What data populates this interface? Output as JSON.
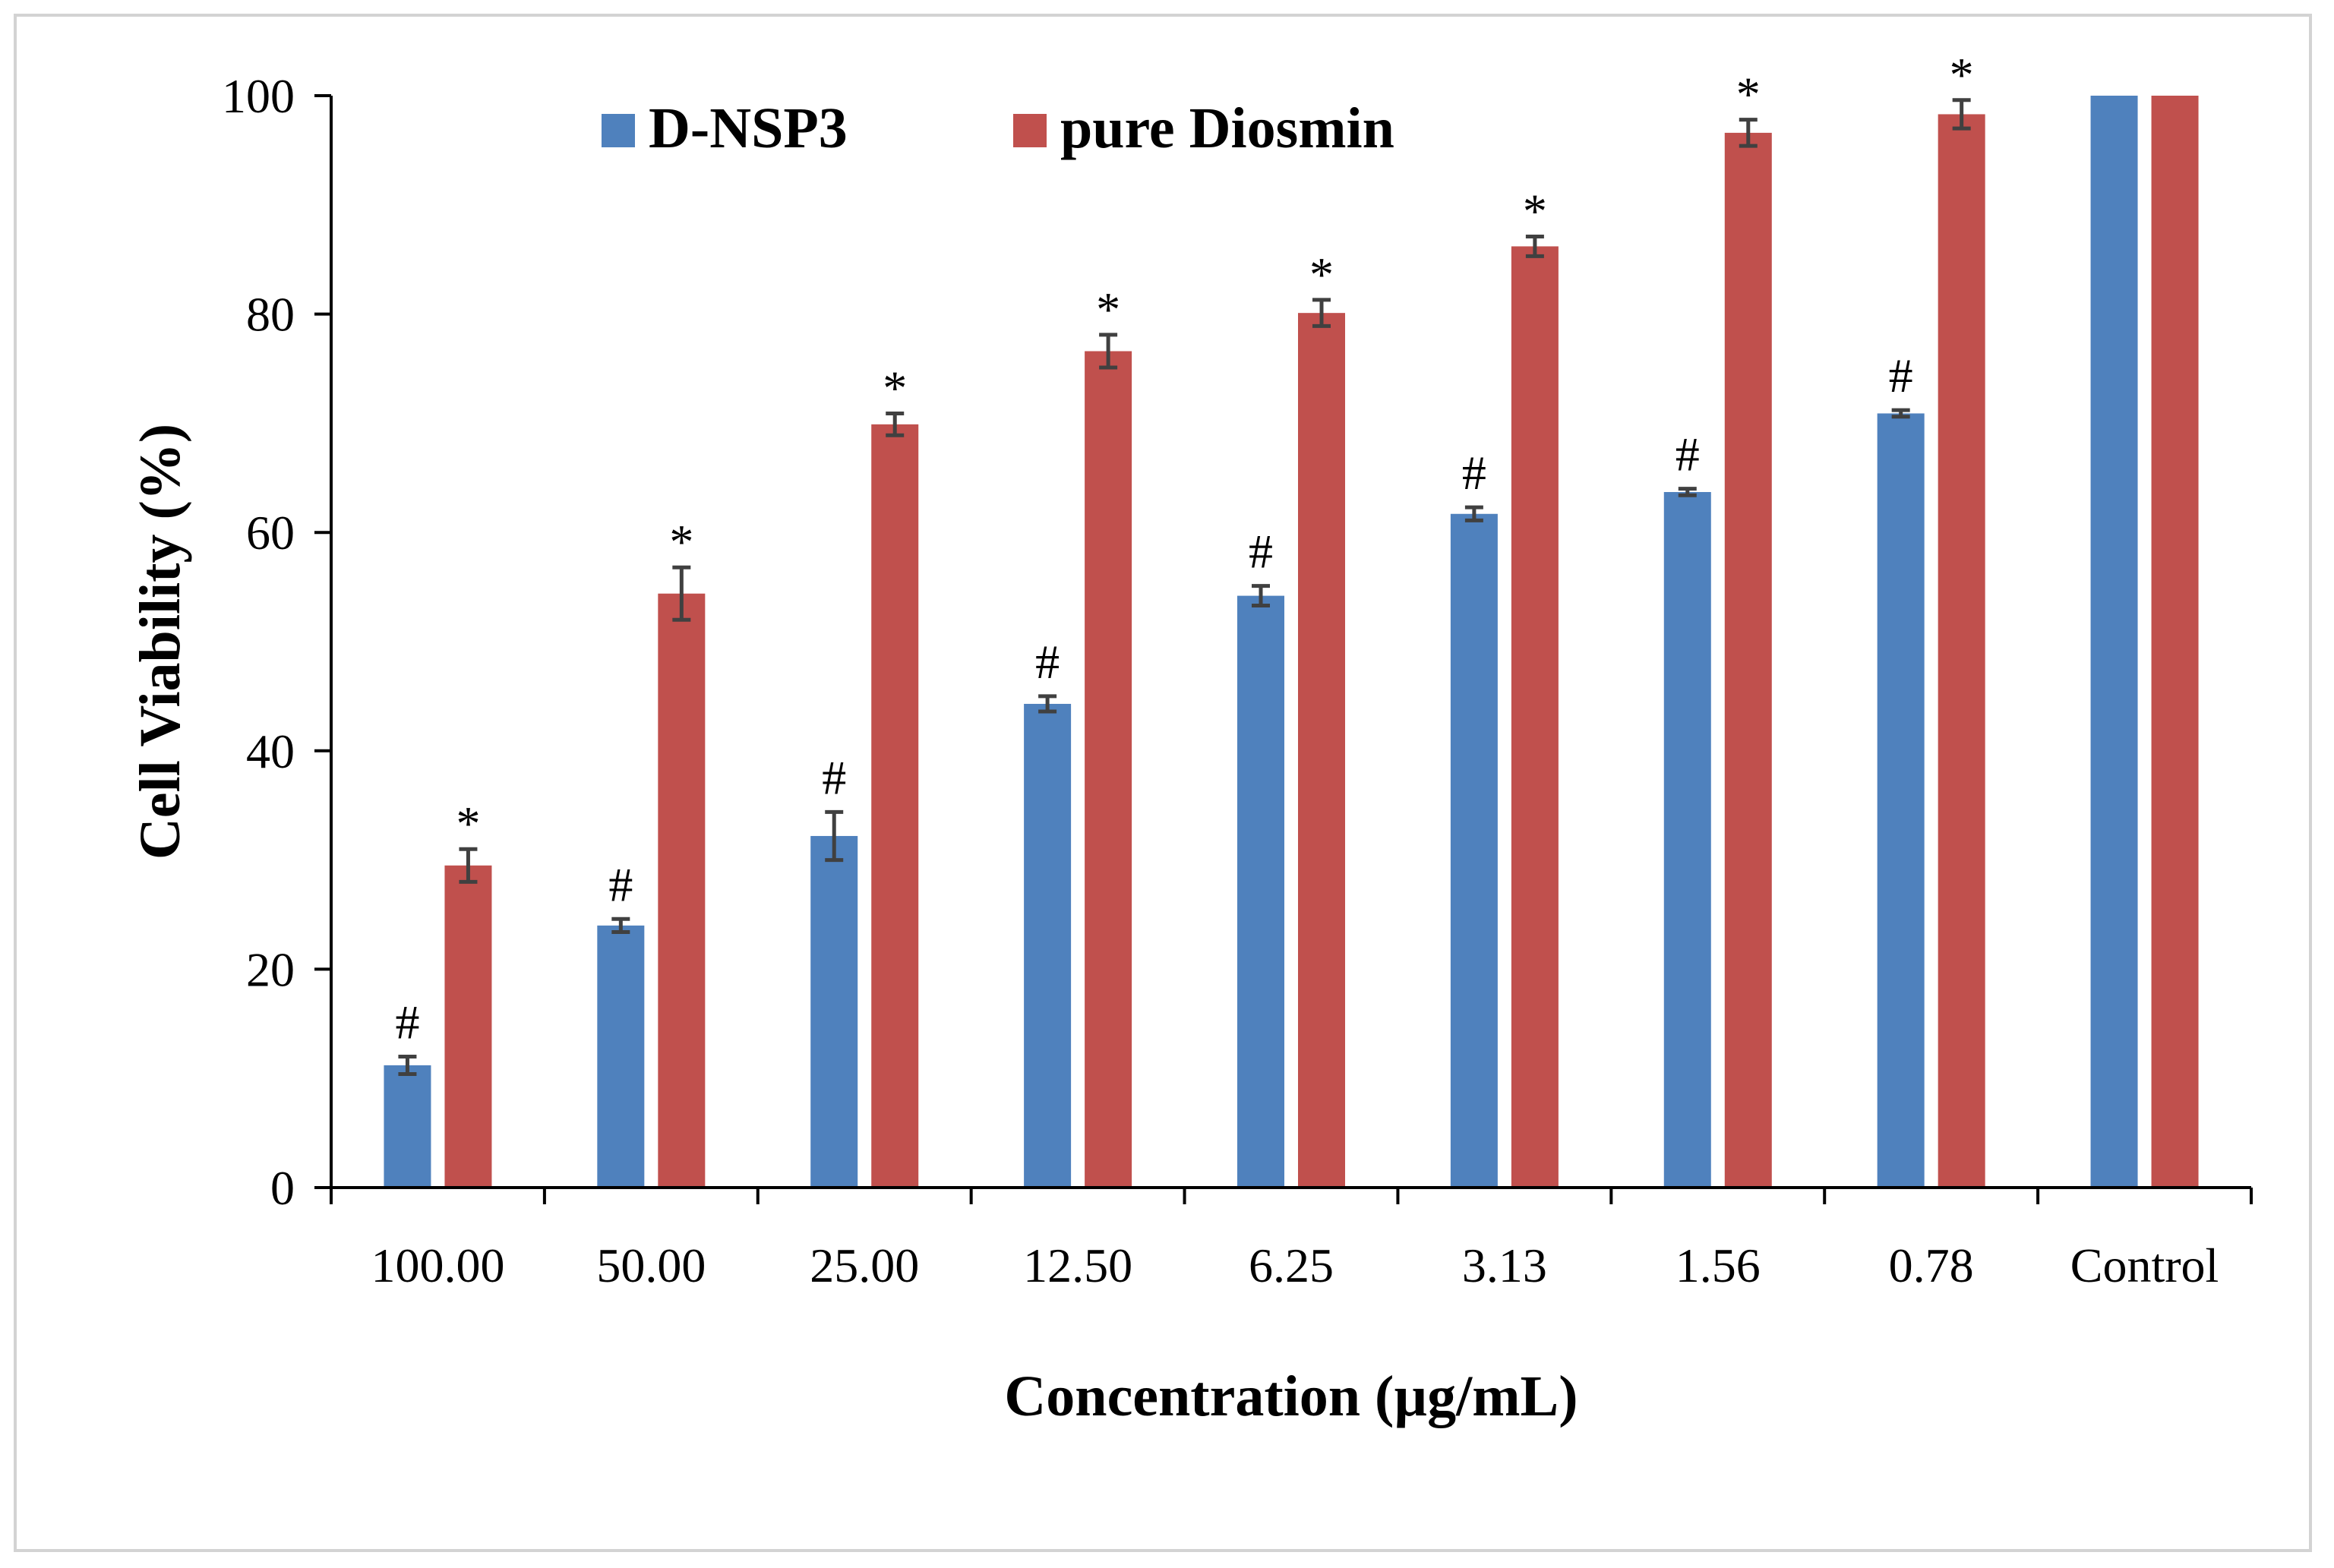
{
  "chart_data": {
    "type": "bar",
    "title": "",
    "xlabel": "Concentration (µg/mL)",
    "ylabel": "Cell Viability (%)",
    "ylim": [
      0,
      100
    ],
    "yticks": [
      "0",
      "20",
      "40",
      "60",
      "80",
      "100"
    ],
    "categories": [
      "100.00",
      "50.00",
      "25.00",
      "12.50",
      "6.25",
      "3.13",
      "1.56",
      "0.78",
      "Control"
    ],
    "legend_position": "top",
    "series": [
      {
        "name": "D-NSP3",
        "color": "#4f81bd",
        "values": [
          11.2,
          24.0,
          32.2,
          44.3,
          54.2,
          61.7,
          63.7,
          70.9,
          100
        ],
        "errors": [
          0.8,
          0.6,
          2.2,
          0.7,
          0.9,
          0.6,
          0.3,
          0.3,
          0
        ],
        "markers": [
          "#",
          "#",
          "#",
          "#",
          "#",
          "#",
          "#",
          "#",
          ""
        ]
      },
      {
        "name": "pure Diosmin",
        "color": "#c0504d",
        "values": [
          29.5,
          54.4,
          69.9,
          76.6,
          80.1,
          86.2,
          96.6,
          98.3,
          100
        ],
        "errors": [
          1.5,
          2.4,
          1.0,
          1.5,
          1.2,
          0.9,
          1.2,
          1.3,
          0
        ],
        "markers": [
          "*",
          "*",
          "*",
          "*",
          "*",
          "*",
          "*",
          "*",
          ""
        ]
      }
    ]
  }
}
